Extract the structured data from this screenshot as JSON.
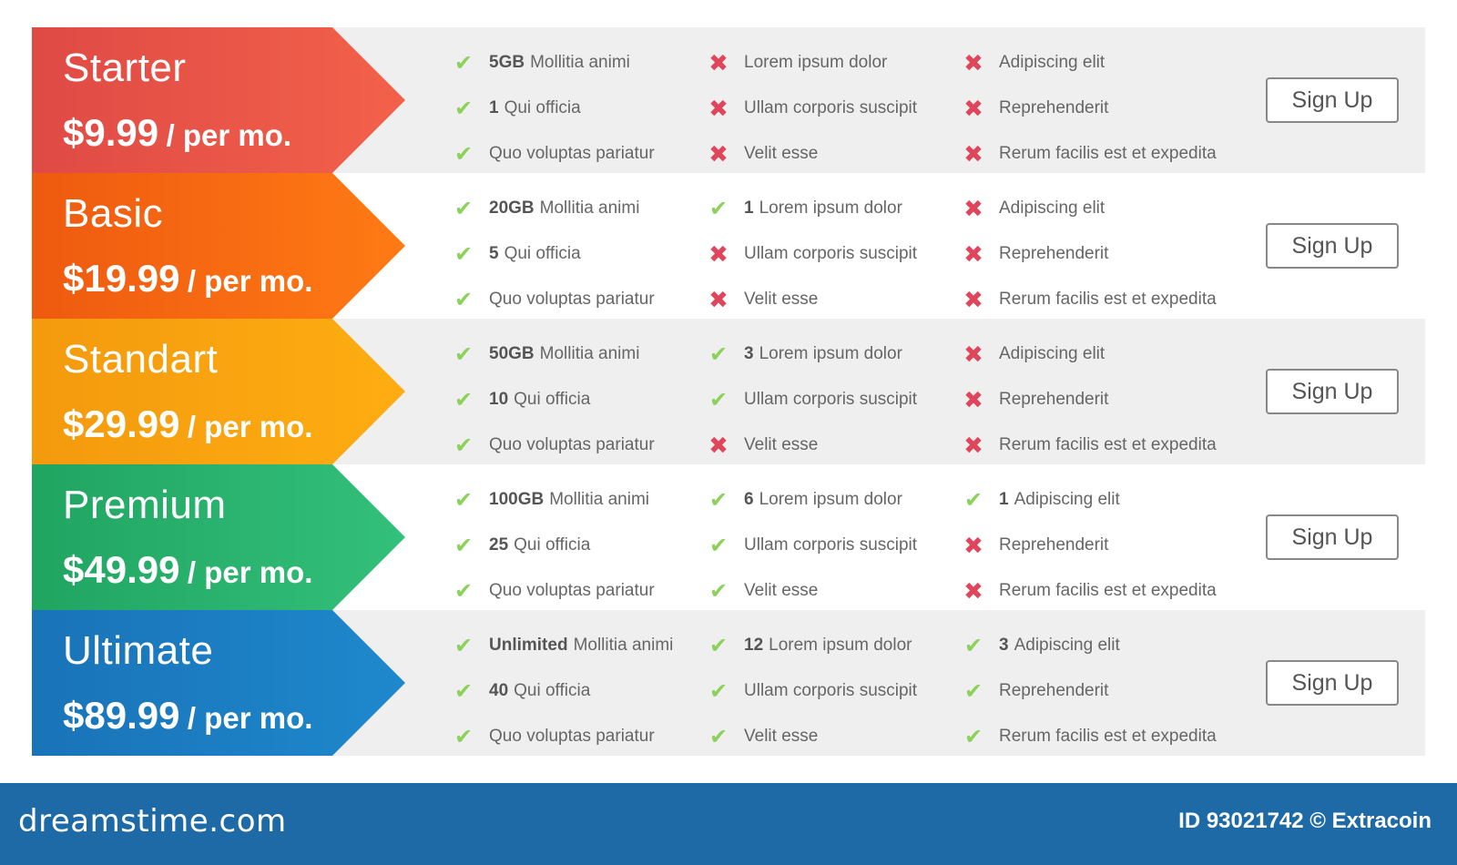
{
  "colors": {
    "check": "#8cd25a",
    "cross": "#e1455b",
    "footer": "#1d6aa7",
    "row_shade": "#efefef"
  },
  "plans": [
    {
      "name": "Starter",
      "amount": "$9.99",
      "period": "/ per mo.",
      "gradient": [
        "#df4a45",
        "#f3614a"
      ],
      "shade": true,
      "button": "Sign Up",
      "features": [
        [
          {
            "icon": "check",
            "value": "5GB",
            "text": "Mollitia animi"
          },
          {
            "icon": "check",
            "value": "1",
            "text": "Qui officia"
          },
          {
            "icon": "check",
            "value": "",
            "text": "Quo voluptas pariatur"
          }
        ],
        [
          {
            "icon": "cross",
            "value": "",
            "text": "Lorem ipsum dolor"
          },
          {
            "icon": "cross",
            "value": "",
            "text": "Ullam corporis suscipit"
          },
          {
            "icon": "cross",
            "value": "",
            "text": "Velit esse"
          }
        ],
        [
          {
            "icon": "cross",
            "value": "",
            "text": "Adipiscing elit"
          },
          {
            "icon": "cross",
            "value": "",
            "text": "Reprehenderit"
          },
          {
            "icon": "cross",
            "value": "",
            "text": "Rerum facilis est et expedita"
          }
        ]
      ]
    },
    {
      "name": "Basic",
      "amount": "$19.99",
      "period": "/ per mo.",
      "gradient": [
        "#ee5a10",
        "#ff7a14"
      ],
      "shade": false,
      "button": "Sign Up",
      "features": [
        [
          {
            "icon": "check",
            "value": "20GB",
            "text": "Mollitia animi"
          },
          {
            "icon": "check",
            "value": "5",
            "text": "Qui officia"
          },
          {
            "icon": "check",
            "value": "",
            "text": "Quo voluptas pariatur"
          }
        ],
        [
          {
            "icon": "check",
            "value": "1",
            "text": "Lorem ipsum dolor"
          },
          {
            "icon": "cross",
            "value": "",
            "text": "Ullam corporis suscipit"
          },
          {
            "icon": "cross",
            "value": "",
            "text": "Velit esse"
          }
        ],
        [
          {
            "icon": "cross",
            "value": "",
            "text": "Adipiscing elit"
          },
          {
            "icon": "cross",
            "value": "",
            "text": "Reprehenderit"
          },
          {
            "icon": "cross",
            "value": "",
            "text": "Rerum facilis est et expedita"
          }
        ]
      ]
    },
    {
      "name": "Standart",
      "amount": "$29.99",
      "period": "/ per mo.",
      "gradient": [
        "#f39a0d",
        "#ffad12"
      ],
      "shade": true,
      "button": "Sign Up",
      "features": [
        [
          {
            "icon": "check",
            "value": "50GB",
            "text": "Mollitia animi"
          },
          {
            "icon": "check",
            "value": "10",
            "text": "Qui officia"
          },
          {
            "icon": "check",
            "value": "",
            "text": "Quo voluptas pariatur"
          }
        ],
        [
          {
            "icon": "check",
            "value": "3",
            "text": "Lorem ipsum dolor"
          },
          {
            "icon": "check",
            "value": "",
            "text": "Ullam corporis suscipit"
          },
          {
            "icon": "cross",
            "value": "",
            "text": "Velit esse"
          }
        ],
        [
          {
            "icon": "cross",
            "value": "",
            "text": "Adipiscing elit"
          },
          {
            "icon": "cross",
            "value": "",
            "text": "Reprehenderit"
          },
          {
            "icon": "cross",
            "value": "",
            "text": "Rerum facilis est et expedita"
          }
        ]
      ]
    },
    {
      "name": "Premium",
      "amount": "$49.99",
      "period": "/ per mo.",
      "gradient": [
        "#20a561",
        "#33c07a"
      ],
      "shade": false,
      "button": "Sign Up",
      "features": [
        [
          {
            "icon": "check",
            "value": "100GB",
            "text": "Mollitia animi"
          },
          {
            "icon": "check",
            "value": "25",
            "text": "Qui officia"
          },
          {
            "icon": "check",
            "value": "",
            "text": "Quo voluptas pariatur"
          }
        ],
        [
          {
            "icon": "check",
            "value": "6",
            "text": "Lorem ipsum dolor"
          },
          {
            "icon": "check",
            "value": "",
            "text": "Ullam corporis suscipit"
          },
          {
            "icon": "check",
            "value": "",
            "text": "Velit esse"
          }
        ],
        [
          {
            "icon": "check",
            "value": "1",
            "text": "Adipiscing elit"
          },
          {
            "icon": "cross",
            "value": "",
            "text": "Reprehenderit"
          },
          {
            "icon": "cross",
            "value": "",
            "text": "Rerum facilis est et expedita"
          }
        ]
      ]
    },
    {
      "name": "Ultimate",
      "amount": "$89.99",
      "period": "/ per mo.",
      "gradient": [
        "#1a73b8",
        "#1e88cc"
      ],
      "shade": true,
      "button": "Sign Up",
      "features": [
        [
          {
            "icon": "check",
            "value": "Unlimited",
            "text": "Mollitia animi"
          },
          {
            "icon": "check",
            "value": "40",
            "text": "Qui officia"
          },
          {
            "icon": "check",
            "value": "",
            "text": "Quo voluptas pariatur"
          }
        ],
        [
          {
            "icon": "check",
            "value": "12",
            "text": "Lorem ipsum dolor"
          },
          {
            "icon": "check",
            "value": "",
            "text": "Ullam corporis suscipit"
          },
          {
            "icon": "check",
            "value": "",
            "text": "Velit esse"
          }
        ],
        [
          {
            "icon": "check",
            "value": "3",
            "text": "Adipiscing elit"
          },
          {
            "icon": "check",
            "value": "",
            "text": "Reprehenderit"
          },
          {
            "icon": "check",
            "value": "",
            "text": "Rerum facilis est et expedita"
          }
        ]
      ]
    }
  ],
  "footer": {
    "brand": "dreamstime.com",
    "credit": "ID 93021742 © Extracoin"
  }
}
